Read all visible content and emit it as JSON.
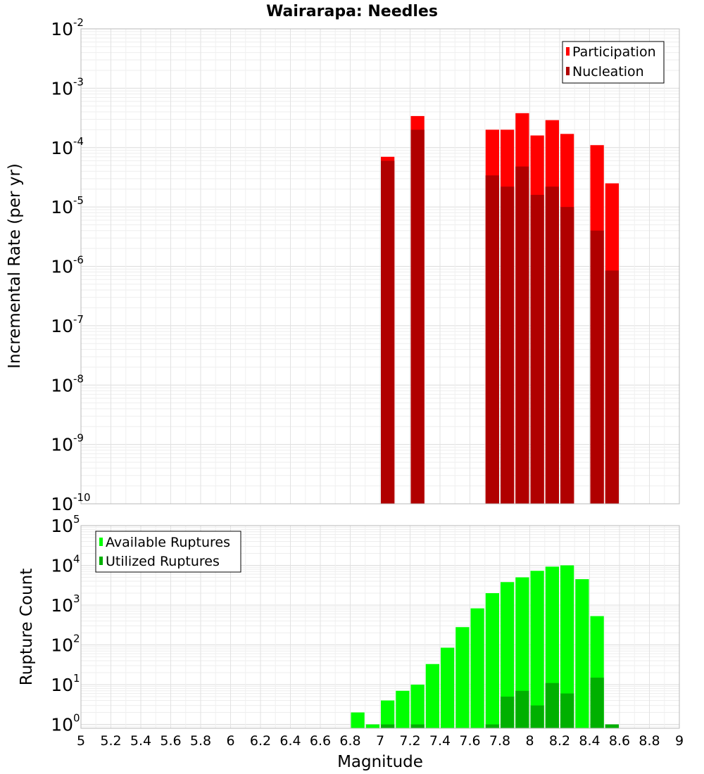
{
  "chart_data": [
    {
      "type": "bar",
      "title": "Wairarapa: Needles",
      "ylabel": "Incremental Rate (per yr)",
      "xlabel": "",
      "yscale": "log",
      "ylim": [
        1e-10,
        0.01
      ],
      "xlim": [
        5,
        9
      ],
      "bin_width": 0.1,
      "colors": {
        "Participation": "#ff0000",
        "Nucleation": "#b00000"
      },
      "legend_position": "top-right",
      "y_ticks": [
        {
          "base": "10",
          "exp": "-10",
          "value": 1e-10
        },
        {
          "base": "10",
          "exp": "-9",
          "value": 1e-09
        },
        {
          "base": "10",
          "exp": "-8",
          "value": 1e-08
        },
        {
          "base": "10",
          "exp": "-7",
          "value": 1e-07
        },
        {
          "base": "10",
          "exp": "-6",
          "value": 1e-06
        },
        {
          "base": "10",
          "exp": "-5",
          "value": 1e-05
        },
        {
          "base": "10",
          "exp": "-4",
          "value": 0.0001
        },
        {
          "base": "10",
          "exp": "-3",
          "value": 0.001
        },
        {
          "base": "10",
          "exp": "-2",
          "value": 0.01
        }
      ],
      "series": [
        {
          "name": "Participation",
          "x": [
            7.05,
            7.25,
            7.75,
            7.85,
            7.95,
            8.05,
            8.15,
            8.25,
            8.45,
            8.55
          ],
          "values": [
            7e-05,
            0.00034,
            0.0002,
            0.0002,
            0.00038,
            0.00016,
            0.00029,
            0.00017,
            0.00011,
            2.5e-05
          ]
        },
        {
          "name": "Nucleation",
          "x": [
            7.05,
            7.25,
            7.75,
            7.85,
            7.95,
            8.05,
            8.15,
            8.25,
            8.45,
            8.55
          ],
          "values": [
            6e-05,
            0.0002,
            3.4e-05,
            2.2e-05,
            4.8e-05,
            1.6e-05,
            2.2e-05,
            1e-05,
            4e-06,
            8.5e-07
          ]
        }
      ]
    },
    {
      "type": "bar",
      "title": "",
      "ylabel": "Rupture Count",
      "xlabel": "Magnitude",
      "yscale": "log",
      "ylim": [
        0.8,
        100000.0
      ],
      "xlim": [
        5,
        9
      ],
      "bin_width": 0.1,
      "colors": {
        "Available Ruptures": "#00ff00",
        "Utilized Ruptures": "#00b000"
      },
      "legend_position": "top-left",
      "y_ticks": [
        {
          "base": "10",
          "exp": "0",
          "value": 1
        },
        {
          "base": "10",
          "exp": "1",
          "value": 10
        },
        {
          "base": "10",
          "exp": "2",
          "value": 100
        },
        {
          "base": "10",
          "exp": "3",
          "value": 1000
        },
        {
          "base": "10",
          "exp": "4",
          "value": 10000
        },
        {
          "base": "10",
          "exp": "5",
          "value": 100000
        }
      ],
      "x_ticks": [
        "5",
        "5.2",
        "5.4",
        "5.6",
        "5.8",
        "6",
        "6.2",
        "6.4",
        "6.6",
        "6.8",
        "7",
        "7.2",
        "7.4",
        "7.6",
        "7.8",
        "8",
        "8.2",
        "8.4",
        "8.6",
        "8.8",
        "9"
      ],
      "series": [
        {
          "name": "Available Ruptures",
          "x": [
            6.85,
            6.95,
            7.05,
            7.15,
            7.25,
            7.35,
            7.45,
            7.55,
            7.65,
            7.75,
            7.85,
            7.95,
            8.05,
            8.15,
            8.25,
            8.35,
            8.45,
            8.55
          ],
          "values": [
            2,
            1,
            4,
            7,
            10,
            33,
            85,
            280,
            830,
            2000,
            3800,
            5000,
            7300,
            9300,
            10000,
            4500,
            530,
            1
          ]
        },
        {
          "name": "Utilized Ruptures",
          "x": [
            7.05,
            7.25,
            7.75,
            7.85,
            7.95,
            8.05,
            8.15,
            8.25,
            8.45,
            8.55
          ],
          "values": [
            1,
            1,
            1,
            5,
            7,
            3,
            11,
            6,
            15,
            1
          ]
        }
      ]
    }
  ]
}
